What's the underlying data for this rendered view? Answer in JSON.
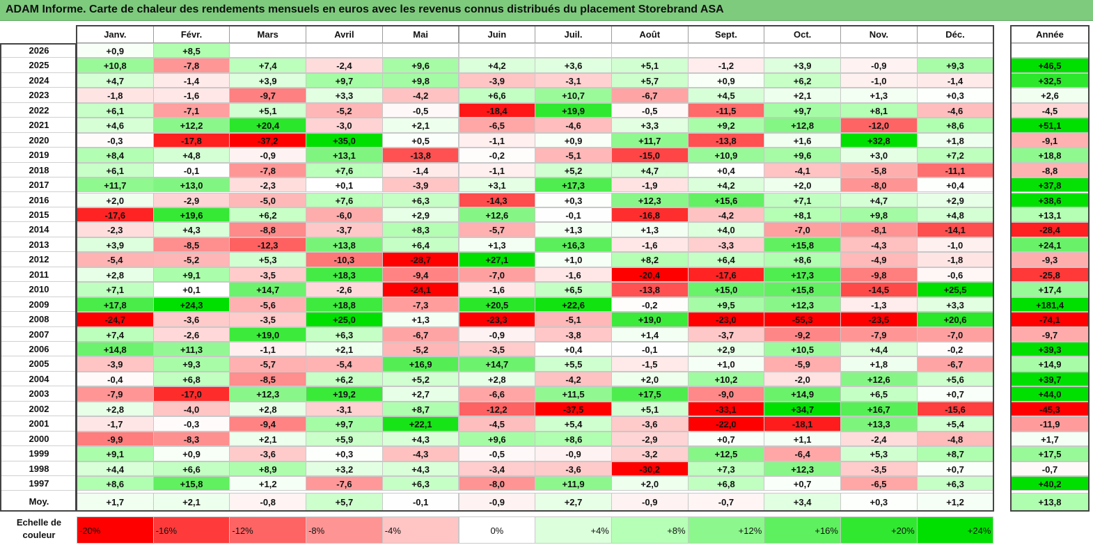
{
  "title": "ADAM Informe. Carte de chaleur des rendements mensuels en euros avec les revenus connus distribués du placement Storebrand ASA",
  "chart_data": {
    "type": "heatmap",
    "months": [
      "Janv.",
      "Févr.",
      "Mars",
      "Avril",
      "Mai",
      "Juin",
      "Juil.",
      "Août",
      "Sept.",
      "Oct.",
      "Nov.",
      "Déc."
    ],
    "year_header": "Année",
    "rows": [
      {
        "year": "2026",
        "values": [
          0.9,
          8.5,
          null,
          null,
          null,
          null,
          null,
          null,
          null,
          null,
          null,
          null
        ],
        "annual": null
      },
      {
        "year": "2025",
        "values": [
          10.8,
          -7.8,
          7.4,
          -2.4,
          9.6,
          4.2,
          3.6,
          5.1,
          -1.2,
          3.9,
          -0.9,
          9.3
        ],
        "annual": 46.5
      },
      {
        "year": "2024",
        "values": [
          4.7,
          -1.4,
          3.9,
          9.7,
          9.8,
          -3.9,
          -3.1,
          5.7,
          0.9,
          6.2,
          -1.0,
          -1.4
        ],
        "annual": 32.5
      },
      {
        "year": "2023",
        "values": [
          -1.8,
          -1.6,
          -9.7,
          3.3,
          -4.2,
          6.6,
          10.7,
          -6.7,
          4.5,
          2.1,
          1.3,
          0.3
        ],
        "annual": 2.6
      },
      {
        "year": "2022",
        "values": [
          6.1,
          -7.1,
          5.1,
          -5.2,
          -0.5,
          -18.4,
          19.9,
          -0.5,
          -11.5,
          9.7,
          8.1,
          -4.6
        ],
        "annual": -4.5
      },
      {
        "year": "2021",
        "values": [
          4.6,
          12.2,
          20.4,
          -3.0,
          2.1,
          -6.5,
          -4.6,
          3.3,
          9.2,
          12.8,
          -12.0,
          8.6
        ],
        "annual": 51.1
      },
      {
        "year": "2020",
        "values": [
          -0.3,
          -17.8,
          -37.2,
          35.0,
          0.5,
          -1.1,
          0.9,
          11.7,
          -13.8,
          1.6,
          32.8,
          1.8
        ],
        "annual": -9.1
      },
      {
        "year": "2019",
        "values": [
          8.4,
          4.8,
          -0.9,
          13.1,
          -13.8,
          -0.2,
          -5.1,
          -15.0,
          10.9,
          9.6,
          3.0,
          7.2
        ],
        "annual": 18.8
      },
      {
        "year": "2018",
        "values": [
          6.1,
          -0.1,
          -7.8,
          7.6,
          -1.4,
          -1.1,
          5.2,
          4.7,
          0.4,
          -4.1,
          -5.8,
          -11.1
        ],
        "annual": -8.8
      },
      {
        "year": "2017",
        "values": [
          11.7,
          13.0,
          -2.3,
          0.1,
          -3.9,
          3.1,
          17.3,
          -1.9,
          4.2,
          2.0,
          -8.0,
          0.4
        ],
        "annual": 37.8
      },
      {
        "year": "2016",
        "values": [
          2.0,
          -2.9,
          -5.0,
          7.6,
          6.3,
          -14.3,
          0.3,
          12.3,
          15.6,
          7.1,
          4.7,
          2.9
        ],
        "annual": 38.6
      },
      {
        "year": "2015",
        "values": [
          -17.6,
          19.6,
          6.2,
          -6.0,
          2.9,
          12.6,
          -0.1,
          -16.8,
          -4.2,
          8.1,
          9.8,
          4.8
        ],
        "annual": 13.1
      },
      {
        "year": "2014",
        "values": [
          -2.3,
          4.3,
          -8.8,
          -3.7,
          8.3,
          -5.7,
          1.3,
          1.3,
          4.0,
          -7.0,
          -8.1,
          -14.1
        ],
        "annual": -28.4
      },
      {
        "year": "2013",
        "values": [
          3.9,
          -8.5,
          -12.3,
          13.8,
          6.4,
          1.3,
          16.3,
          -1.6,
          -3.3,
          15.8,
          -4.3,
          -1.0
        ],
        "annual": 24.1
      },
      {
        "year": "2012",
        "values": [
          -5.4,
          -5.2,
          5.3,
          -10.3,
          -28.7,
          27.1,
          1.0,
          8.2,
          6.4,
          8.6,
          -4.9,
          -1.8
        ],
        "annual": -9.3
      },
      {
        "year": "2011",
        "values": [
          2.8,
          9.1,
          -3.5,
          18.3,
          -9.4,
          -7.0,
          -1.6,
          -20.4,
          -17.6,
          17.3,
          -9.8,
          -0.6
        ],
        "annual": -25.8
      },
      {
        "year": "2010",
        "values": [
          7.1,
          0.1,
          14.7,
          -2.6,
          -24.1,
          -1.6,
          6.5,
          -13.8,
          15.0,
          15.8,
          -14.5,
          25.5
        ],
        "annual": 17.4
      },
      {
        "year": "2009",
        "values": [
          17.8,
          24.3,
          -5.6,
          18.8,
          -7.3,
          20.5,
          22.6,
          -0.2,
          9.5,
          12.3,
          -1.3,
          3.3
        ],
        "annual": 181.4
      },
      {
        "year": "2008",
        "values": [
          -24.7,
          -3.6,
          -3.5,
          25.0,
          1.3,
          -23.3,
          -5.1,
          19.0,
          -23.0,
          -55.3,
          -23.5,
          20.6
        ],
        "annual": -74.1
      },
      {
        "year": "2007",
        "values": [
          7.4,
          -2.6,
          19.0,
          6.3,
          -6.7,
          -0.9,
          -3.8,
          1.4,
          -3.7,
          -9.2,
          -7.9,
          -7.0
        ],
        "annual": -9.7
      },
      {
        "year": "2006",
        "values": [
          14.8,
          11.3,
          -1.1,
          2.1,
          -5.2,
          -3.5,
          0.4,
          -0.1,
          2.9,
          10.5,
          4.4,
          -0.2
        ],
        "annual": 39.3
      },
      {
        "year": "2005",
        "values": [
          -3.9,
          9.3,
          -5.7,
          -5.4,
          16.9,
          14.7,
          5.5,
          -1.5,
          1.0,
          -5.9,
          1.8,
          -6.7
        ],
        "annual": 14.9
      },
      {
        "year": "2004",
        "values": [
          -0.4,
          6.8,
          -8.5,
          6.2,
          5.2,
          2.8,
          -4.2,
          2.0,
          10.2,
          -2.0,
          12.6,
          5.6
        ],
        "annual": 39.7
      },
      {
        "year": "2003",
        "values": [
          -7.9,
          -17.0,
          12.3,
          19.2,
          2.7,
          -6.6,
          11.5,
          17.5,
          -9.0,
          14.9,
          6.5,
          0.7
        ],
        "annual": 44.0
      },
      {
        "year": "2002",
        "values": [
          2.8,
          -4.0,
          2.8,
          -3.1,
          8.7,
          -12.2,
          -37.5,
          5.1,
          -33.1,
          34.7,
          16.7,
          -15.6
        ],
        "annual": -45.3
      },
      {
        "year": "2001",
        "values": [
          -1.7,
          -0.3,
          -9.4,
          9.7,
          22.1,
          -4.5,
          5.4,
          -3.6,
          -22.0,
          -18.1,
          13.3,
          5.4
        ],
        "annual": -11.9
      },
      {
        "year": "2000",
        "values": [
          -9.9,
          -8.3,
          2.1,
          5.9,
          4.3,
          9.6,
          8.6,
          -2.9,
          0.7,
          1.1,
          -2.4,
          -4.8
        ],
        "annual": 1.7
      },
      {
        "year": "1999",
        "values": [
          9.1,
          0.9,
          -3.6,
          0.3,
          -4.3,
          -0.5,
          -0.9,
          -3.2,
          12.5,
          -6.4,
          5.3,
          8.7
        ],
        "annual": 17.5
      },
      {
        "year": "1998",
        "values": [
          4.4,
          6.6,
          8.9,
          3.2,
          4.3,
          -3.4,
          -3.6,
          -30.2,
          7.3,
          12.3,
          -3.5,
          0.7
        ],
        "annual": -0.7
      },
      {
        "year": "1997",
        "values": [
          8.6,
          15.8,
          1.2,
          -7.6,
          6.3,
          -8.0,
          11.9,
          2.0,
          6.8,
          0.7,
          -6.5,
          6.3
        ],
        "annual": 40.2
      }
    ],
    "average": {
      "label": "Moy.",
      "values": [
        1.7,
        2.1,
        -0.8,
        5.7,
        -0.1,
        -0.9,
        2.7,
        -0.9,
        -0.7,
        3.4,
        0.3,
        1.2
      ],
      "annual": 13.8
    },
    "color_scale": {
      "label_line1": "Echelle de",
      "label_line2": "couleur",
      "steps": [
        {
          "label": "-20%",
          "value": -20,
          "color": "#ff0000"
        },
        {
          "label": "-16%",
          "value": -16,
          "color": "#ff3a3a"
        },
        {
          "label": "-12%",
          "value": -12,
          "color": "#ff6464"
        },
        {
          "label": "-8%",
          "value": -8,
          "color": "#ff9494"
        },
        {
          "label": "-4%",
          "value": -4,
          "color": "#ffc4c4"
        },
        {
          "label": "0%",
          "value": 0,
          "color": "#ffffff"
        },
        {
          "label": "+4%",
          "value": 4,
          "color": "#dcffdc"
        },
        {
          "label": "+8%",
          "value": 8,
          "color": "#b6ffb6"
        },
        {
          "label": "+12%",
          "value": 12,
          "color": "#8cf78c"
        },
        {
          "label": "+16%",
          "value": 16,
          "color": "#5ef05e"
        },
        {
          "label": "+20%",
          "value": 20,
          "color": "#30e830"
        },
        {
          "label": "+24%",
          "value": 24,
          "color": "#00e000"
        }
      ]
    }
  }
}
